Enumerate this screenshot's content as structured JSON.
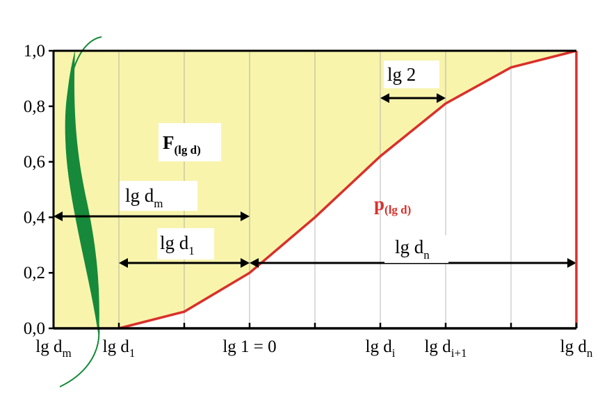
{
  "chart_data": {
    "type": "line",
    "categories": [
      {
        "main": "lg d",
        "sub": "m"
      },
      {
        "main": "lg d",
        "sub": "1"
      },
      null,
      "lg 1 = 0",
      null,
      {
        "main": "lg d",
        "sub": "i"
      },
      {
        "main": "lg d",
        "sub": "i+1"
      },
      null,
      {
        "main": "lg d",
        "sub": "n"
      }
    ],
    "series": [
      {
        "color": "#d9302a",
        "values": [
          null,
          0.0,
          0.06,
          0.2,
          0.4,
          0.62,
          0.81,
          0.94,
          1.0
        ]
      }
    ],
    "ylim": [
      0,
      1
    ],
    "yticks": [
      {
        "value": 0,
        "label": "0,0"
      },
      {
        "value": 0.2,
        "label": "0,2"
      },
      {
        "value": 0.4,
        "label": "0,4"
      },
      {
        "value": 0.6,
        "label": "0,6"
      },
      {
        "value": 0.8,
        "label": "0,8"
      },
      {
        "value": 1,
        "label": "1,0"
      }
    ],
    "grid": true,
    "fill_color": "#f8f4ac",
    "annotations": [
      {
        "main": "F",
        "sub": "(lg d)"
      },
      {
        "main": "p",
        "sub": "(lg d)"
      },
      {
        "main": "lg d",
        "sub": "m"
      },
      {
        "main": "lg d",
        "sub": "1"
      },
      {
        "main": "lg d",
        "sub": "n"
      },
      {
        "main": "lg 2"
      }
    ]
  }
}
